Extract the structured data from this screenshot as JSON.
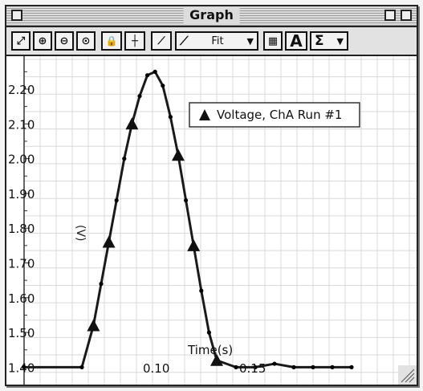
{
  "window": {
    "title": "Graph"
  },
  "toolbar": {
    "buttons": [
      {
        "name": "autoscale-icon",
        "glyph": "⤢"
      },
      {
        "name": "zoom-in-icon",
        "glyph": "⊕"
      },
      {
        "name": "zoom-out-icon",
        "glyph": "⊖"
      },
      {
        "name": "zoom-select-icon",
        "glyph": "⊙"
      },
      {
        "name": "lock-icon",
        "glyph": "🔒"
      },
      {
        "name": "smart-cursor-icon",
        "glyph": "┼"
      },
      {
        "name": "tangent-icon",
        "glyph": "⟋"
      }
    ],
    "fit_label": "Fit",
    "text_button_label": "A",
    "sigma_label": "Σ"
  },
  "chart_data": {
    "type": "line",
    "series": [
      {
        "name": "Voltage, ChA Run #1"
      }
    ],
    "ylabel": "(V)",
    "xlabel": "Time(s)",
    "y_ticks": [
      "2.20",
      "2.10",
      "2.00",
      "1.90",
      "1.80",
      "1.70",
      "1.60",
      "1.50",
      "1.40"
    ],
    "x_ticks": [
      "0.10",
      "0.15"
    ],
    "ylim": [
      1.4,
      2.25
    ],
    "xlim": [
      0.03,
      0.2
    ],
    "x": [
      0.03,
      0.06,
      0.066,
      0.07,
      0.074,
      0.078,
      0.082,
      0.086,
      0.09,
      0.094,
      0.098,
      0.102,
      0.106,
      0.11,
      0.114,
      0.118,
      0.122,
      0.126,
      0.13,
      0.14,
      0.15,
      0.16,
      0.17,
      0.18,
      0.19,
      0.2
    ],
    "y": [
      1.4,
      1.4,
      1.52,
      1.64,
      1.76,
      1.88,
      2.0,
      2.1,
      2.18,
      2.24,
      2.25,
      2.21,
      2.12,
      2.01,
      1.88,
      1.75,
      1.62,
      1.5,
      1.42,
      1.4,
      1.4,
      1.41,
      1.4,
      1.4,
      1.4,
      1.4
    ],
    "marker_indices": [
      2,
      4,
      7,
      13,
      15,
      18
    ],
    "grid": true,
    "legend_position": "top-right",
    "line_color": "#1a1a1a"
  }
}
